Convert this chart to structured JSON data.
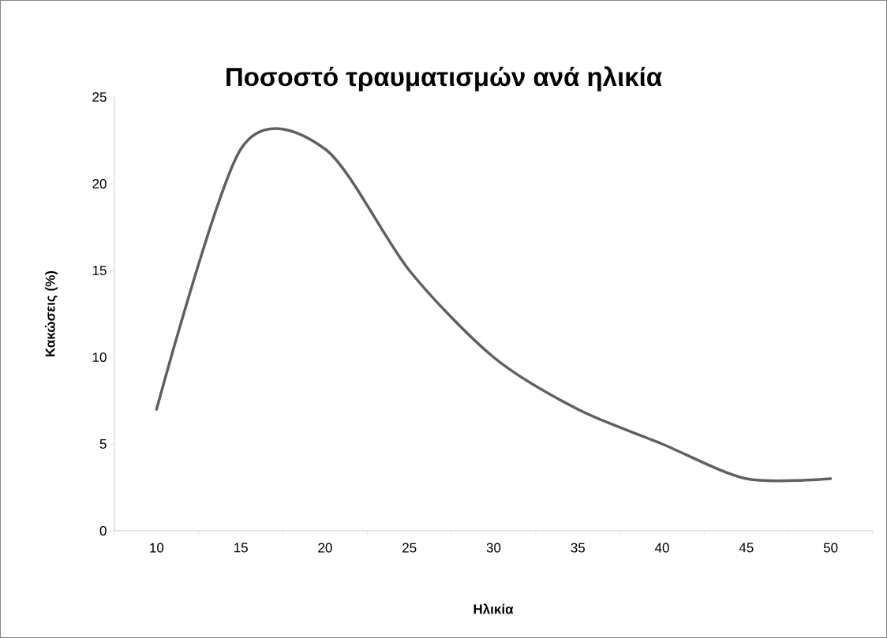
{
  "chart_data": {
    "type": "line",
    "title": "Ποσοστό τραυματισμών ανά ηλικία",
    "xlabel": "Ηλικία",
    "ylabel": "Κακώσεις (%)",
    "categories": [
      "10",
      "15",
      "20",
      "25",
      "30",
      "35",
      "40",
      "45",
      "50"
    ],
    "series": [
      {
        "color": "#606060",
        "values": [
          7,
          22,
          22,
          15,
          10,
          7,
          5,
          3,
          3
        ]
      }
    ],
    "ylim": [
      0,
      25
    ],
    "yticks": [
      0,
      5,
      10,
      15,
      20,
      25
    ]
  }
}
